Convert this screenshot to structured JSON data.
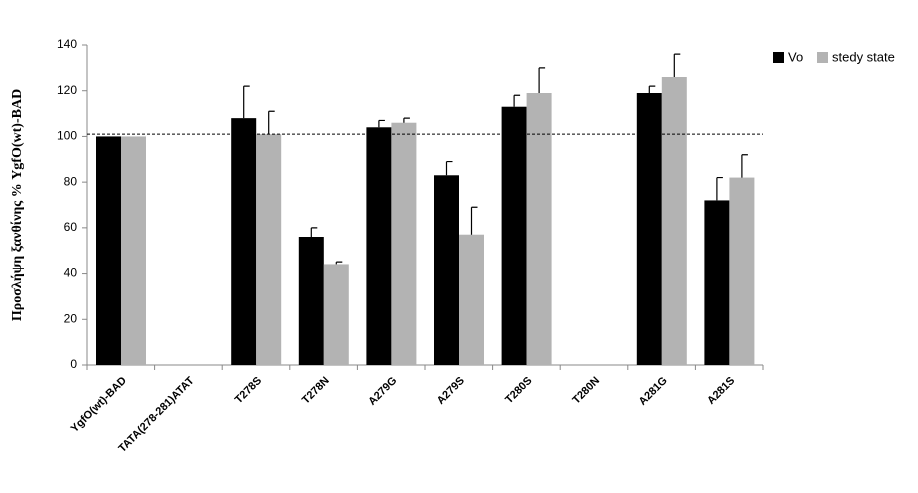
{
  "chart_data": {
    "type": "bar",
    "y_label": "Προσλήψη ξανθίνης % YgfO(wt)-BAD",
    "categories": [
      "YgfO(wt)-BAD",
      "TATA(278-281)ATAT",
      "T278S",
      "T278N",
      "A279G",
      "A279S",
      "T280S",
      "T280N",
      "A281G",
      "A281S"
    ],
    "series": [
      {
        "name": "Vo",
        "color": "#000000",
        "values": [
          100,
          null,
          108,
          56,
          104,
          83,
          113,
          null,
          119,
          72
        ],
        "errors": [
          0,
          null,
          14,
          4,
          3,
          6,
          5,
          null,
          3,
          10
        ]
      },
      {
        "name": "stedy state",
        "color": "#b3b3b3",
        "values": [
          100,
          null,
          101,
          44,
          106,
          57,
          119,
          null,
          126,
          82
        ],
        "errors": [
          0,
          null,
          10,
          1,
          2,
          12,
          11,
          null,
          10,
          10
        ]
      }
    ],
    "ylim": [
      0,
      140
    ],
    "yticks": [
      0,
      20,
      40,
      60,
      80,
      100,
      120,
      140
    ],
    "reference_line": 101,
    "legend": "top-right"
  }
}
